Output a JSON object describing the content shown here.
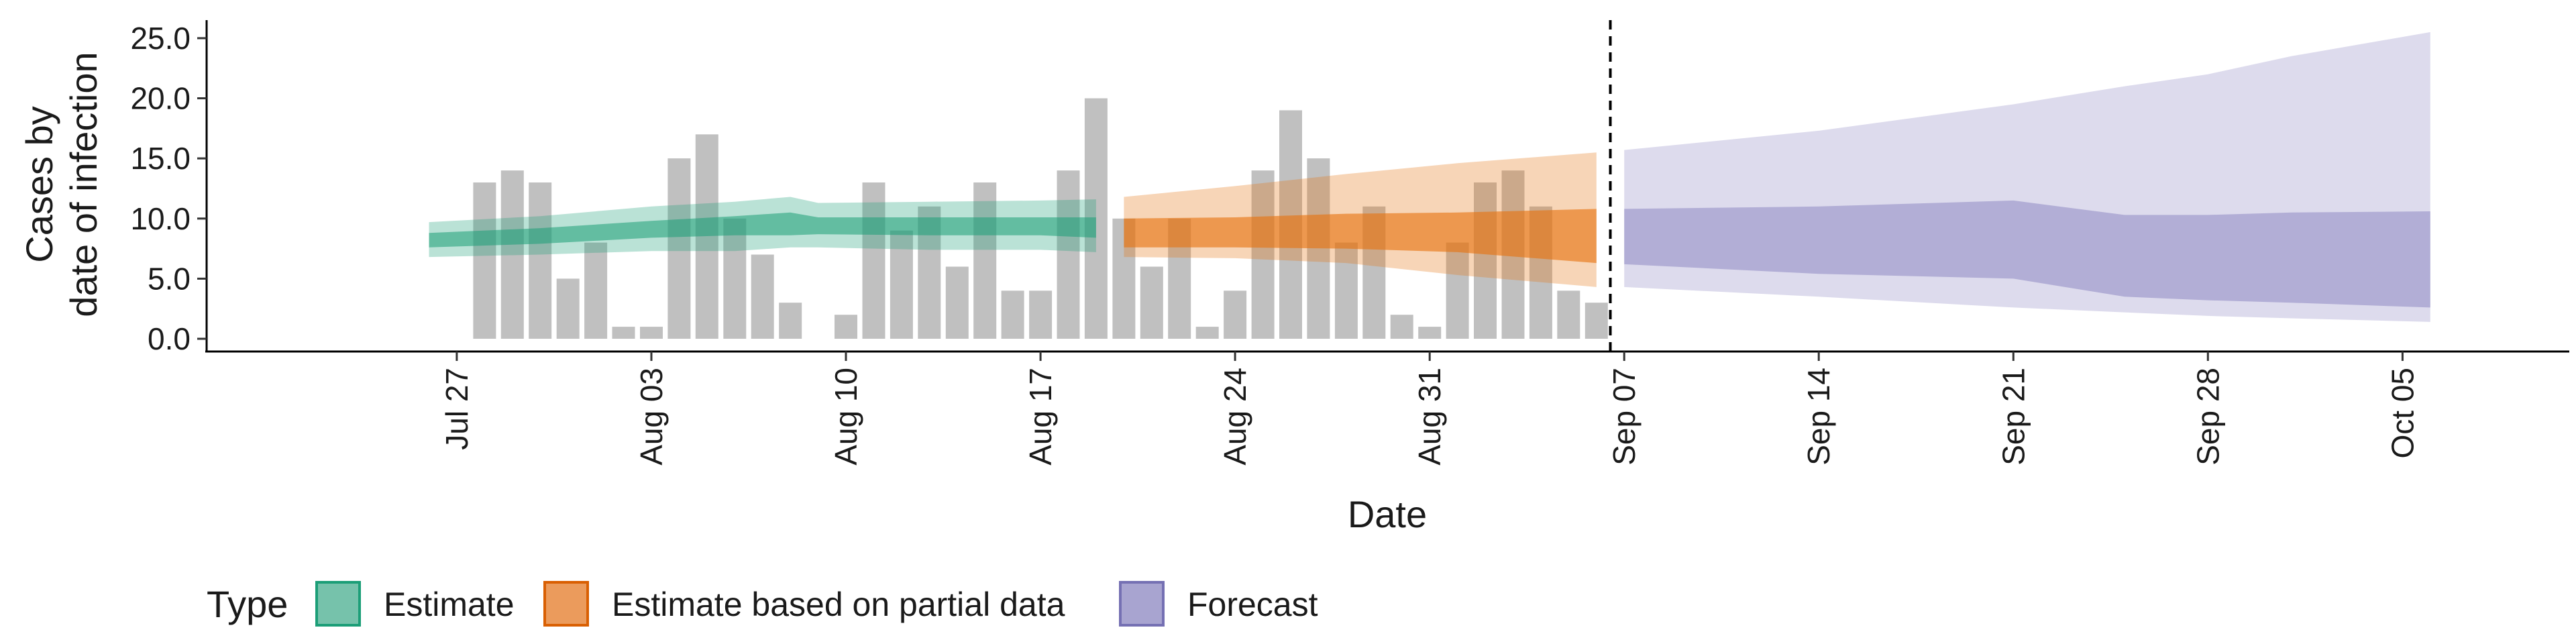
{
  "chart_data": {
    "type": "bar",
    "xlabel": "Date",
    "ylabel_lines": [
      "Cases by",
      "date of infection"
    ],
    "ylim": [
      0,
      26.5
    ],
    "y_ticks": [
      0,
      5,
      10,
      15,
      20,
      25
    ],
    "y_tick_labels": [
      "0.0",
      "5.0",
      "10.0",
      "15.0",
      "20.0",
      "25.0"
    ],
    "x_range": [
      "2020-07-18",
      "2020-10-11"
    ],
    "x_ticks": [
      "2020-07-27",
      "2020-08-03",
      "2020-08-10",
      "2020-08-17",
      "2020-08-24",
      "2020-08-31",
      "2020-09-07",
      "2020-09-14",
      "2020-09-21",
      "2020-09-28",
      "2020-10-05"
    ],
    "x_tick_labels": [
      "Jul 27",
      "Aug 03",
      "Aug 10",
      "Aug 17",
      "Aug 24",
      "Aug 31",
      "Sep 07",
      "Sep 14",
      "Sep 21",
      "Sep 28",
      "Oct 05"
    ],
    "vline_date": "2020-09-06",
    "grid": false,
    "colors": {
      "bars": "#bdbdbd",
      "estimate": "#1b9e77",
      "partial": "#e6730f",
      "forecast": "#8e88c3"
    },
    "reported_cases": {
      "dates": [
        "2020-07-28",
        "2020-07-29",
        "2020-07-30",
        "2020-07-31",
        "2020-08-01",
        "2020-08-02",
        "2020-08-03",
        "2020-08-04",
        "2020-08-05",
        "2020-08-06",
        "2020-08-07",
        "2020-08-08",
        "2020-08-09",
        "2020-08-10",
        "2020-08-11",
        "2020-08-12",
        "2020-08-13",
        "2020-08-14",
        "2020-08-15",
        "2020-08-16",
        "2020-08-17",
        "2020-08-18",
        "2020-08-19",
        "2020-08-20",
        "2020-08-21",
        "2020-08-22",
        "2020-08-23",
        "2020-08-24",
        "2020-08-25",
        "2020-08-26",
        "2020-08-27",
        "2020-08-28",
        "2020-08-29",
        "2020-08-30",
        "2020-08-31",
        "2020-09-01",
        "2020-09-02",
        "2020-09-03",
        "2020-09-04",
        "2020-09-05",
        "2020-09-06"
      ],
      "values": [
        13,
        14,
        13,
        5,
        8,
        1,
        1,
        15,
        17,
        10,
        7,
        3,
        0,
        2,
        13,
        9,
        11,
        6,
        13,
        4,
        4,
        14,
        20,
        10,
        6,
        10,
        1,
        4,
        14,
        19,
        15,
        8,
        11,
        2,
        1,
        8,
        13,
        14,
        11,
        4,
        3
      ]
    },
    "series": [
      {
        "name": "Estimate",
        "dates": [
          "2020-07-26",
          "2020-07-30",
          "2020-08-03",
          "2020-08-06",
          "2020-08-08",
          "2020-08-09",
          "2020-08-13",
          "2020-08-17",
          "2020-08-19"
        ],
        "median": [
          8.2,
          8.7,
          9.3,
          9.6,
          9.6,
          9.5,
          9.5,
          9.5,
          9.5
        ],
        "lower_50": [
          7.6,
          7.9,
          8.4,
          8.6,
          8.6,
          8.7,
          8.6,
          8.6,
          8.4
        ],
        "upper_50": [
          8.8,
          9.2,
          9.8,
          10.2,
          10.5,
          10.1,
          10.1,
          10.1,
          10.1
        ],
        "lower_90": [
          6.8,
          7.0,
          7.3,
          7.3,
          7.6,
          7.6,
          7.4,
          7.4,
          7.2
        ],
        "upper_90": [
          9.7,
          10.2,
          11.0,
          11.4,
          11.8,
          11.3,
          11.4,
          11.5,
          11.6
        ]
      },
      {
        "name": "Estimate based on partial data",
        "dates": [
          "2020-08-20",
          "2020-08-24",
          "2020-08-28",
          "2020-09-01",
          "2020-09-06"
        ],
        "median": [
          8.3,
          9.0,
          9.4,
          9.0,
          8.8
        ],
        "lower_50": [
          7.6,
          7.6,
          7.5,
          7.2,
          6.3
        ],
        "upper_50": [
          10.0,
          10.1,
          10.4,
          10.5,
          10.8
        ],
        "lower_90": [
          6.8,
          6.7,
          6.3,
          5.3,
          4.3
        ],
        "upper_90": [
          11.8,
          12.7,
          13.7,
          14.6,
          15.5
        ]
      },
      {
        "name": "Forecast",
        "dates": [
          "2020-09-07",
          "2020-09-14",
          "2020-09-21",
          "2020-09-25",
          "2020-09-28",
          "2020-10-01",
          "2020-10-06"
        ],
        "median": [
          8.4,
          8.2,
          8.0,
          7.0,
          7.0,
          6.8,
          6.5
        ],
        "lower_50": [
          6.2,
          5.4,
          5.0,
          3.5,
          3.2,
          3.0,
          2.6
        ],
        "upper_50": [
          10.8,
          11.0,
          11.5,
          10.3,
          10.3,
          10.5,
          10.6
        ],
        "lower_90": [
          4.3,
          3.5,
          2.6,
          2.2,
          1.9,
          1.7,
          1.4
        ],
        "upper_90": [
          15.7,
          17.3,
          19.5,
          21.0,
          22.0,
          23.5,
          25.5
        ]
      }
    ],
    "legend": {
      "title": "Type",
      "position": "bottom-left",
      "items": [
        "Estimate",
        "Estimate based on partial data",
        "Forecast"
      ]
    }
  }
}
